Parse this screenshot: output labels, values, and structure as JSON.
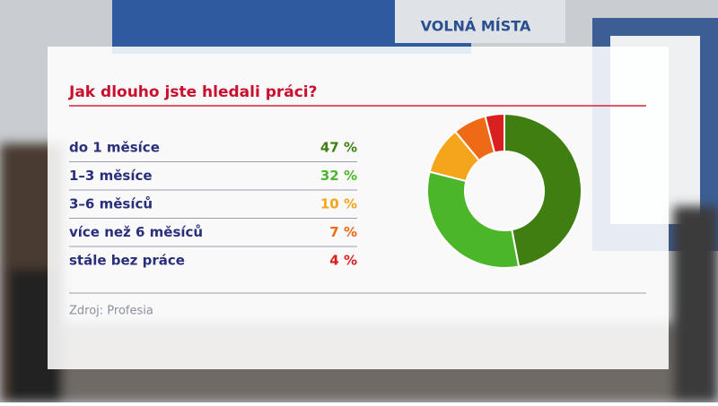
{
  "background_sign": "VOLNÁ MÍSTA",
  "chart_data": {
    "type": "pie",
    "title": "Jak dlouho jste hledali práci?",
    "categories": [
      "do 1 měsíce",
      "1–3 měsíce",
      "3–6 měsíců",
      "více než 6 měsíců",
      "stále bez práce"
    ],
    "values": [
      47,
      32,
      10,
      7,
      4
    ],
    "value_labels": [
      "47 %",
      "32 %",
      "10 %",
      "7 %",
      "4 %"
    ],
    "colors": [
      "#3f7f12",
      "#4cb62a",
      "#f4a51c",
      "#ee6a16",
      "#d9201e"
    ],
    "donut": true,
    "source": "Zdroj: Profesia"
  }
}
